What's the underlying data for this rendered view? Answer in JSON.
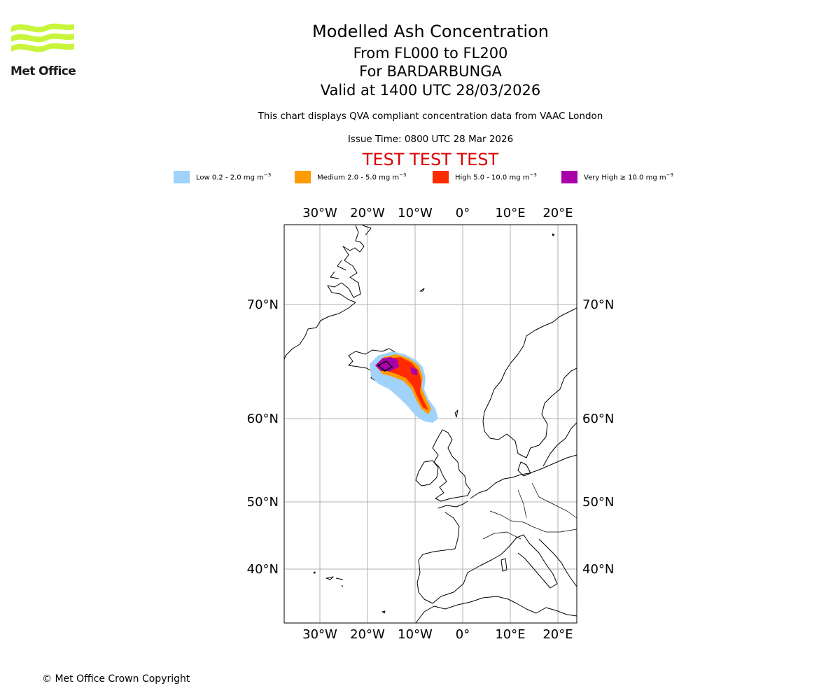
{
  "logo": {
    "text": "Met Office",
    "color": "#c8f53c"
  },
  "header": {
    "title": "Modelled Ash Concentration",
    "levels": "From FL000 to FL200",
    "volcano": "For BARDARBUNGA",
    "valid": "Valid at 1400 UTC 28/03/2026",
    "description": "This chart displays QVA compliant concentration data from VAAC London",
    "issue_time": "Issue Time: 0800 UTC 28 Mar 2026",
    "test_banner": "TEST TEST TEST"
  },
  "legend": [
    {
      "label": "Low 0.2 - 2.0 mg m",
      "exp": "−3",
      "color": "#a0d2fa"
    },
    {
      "label": "Medium 2.0 - 5.0 mg m",
      "exp": "−3",
      "color": "#ff9a00"
    },
    {
      "label": "High 5.0 - 10.0 mg m",
      "exp": "−3",
      "color": "#ff2a00"
    },
    {
      "label": "Very High  ≥  10.0 mg m",
      "exp": "−3",
      "color": "#aa00aa"
    }
  ],
  "map": {
    "lon_labels": [
      "30°W",
      "20°W",
      "10°W",
      "0°",
      "10°E",
      "20°E"
    ],
    "lat_labels": [
      "70°N",
      "60°N",
      "50°N",
      "40°N"
    ],
    "ash_colors": {
      "low": "#a0d2fa",
      "medium": "#ff9a00",
      "high": "#ff2a00",
      "very_high": "#aa00aa"
    }
  },
  "footer": {
    "copyright": "© Met Office Crown Copyright"
  }
}
